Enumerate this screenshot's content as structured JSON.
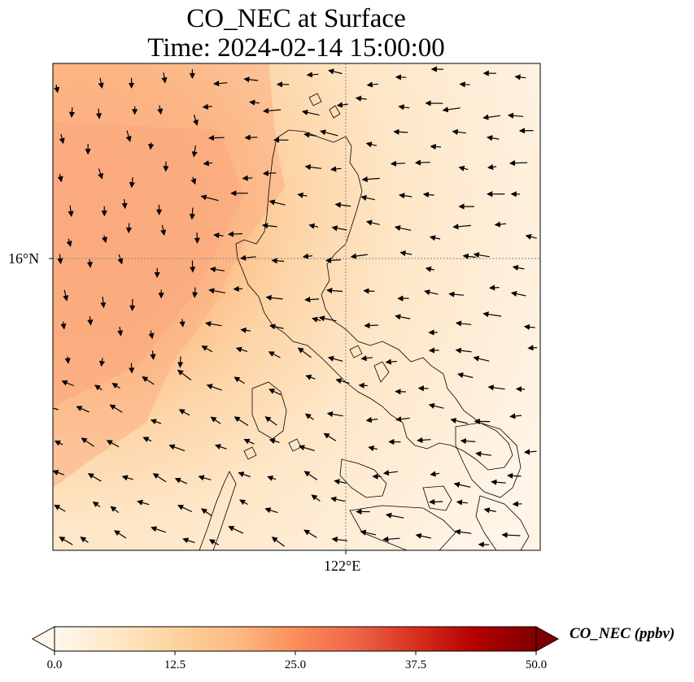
{
  "title": {
    "line1": "CO_NEC at Surface",
    "line2": "Time: 2024-02-14 15:00:00"
  },
  "map": {
    "lat_ticks": [
      "16°N"
    ],
    "lon_ticks": [
      "122°E"
    ],
    "land_outline_color": "#000000",
    "gridline_color": "#888888",
    "wind_vector_color": "#000000"
  },
  "colorbar": {
    "label": "CO_NEC (ppbv)",
    "ticks": [
      "0.0",
      "12.5",
      "25.0",
      "37.5",
      "50.0"
    ],
    "range": [
      0,
      50
    ],
    "extend": "both",
    "colormap": "OrRd",
    "colors": [
      "#fff7ec",
      "#fee8c8",
      "#fdd49e",
      "#fdbb84",
      "#fc8d59",
      "#ef6548",
      "#d7301f",
      "#b30000",
      "#7f0000"
    ]
  },
  "field": {
    "description_values_ppbv": {
      "northwest_max": 21,
      "center": 10,
      "southeast_min": 2
    }
  }
}
